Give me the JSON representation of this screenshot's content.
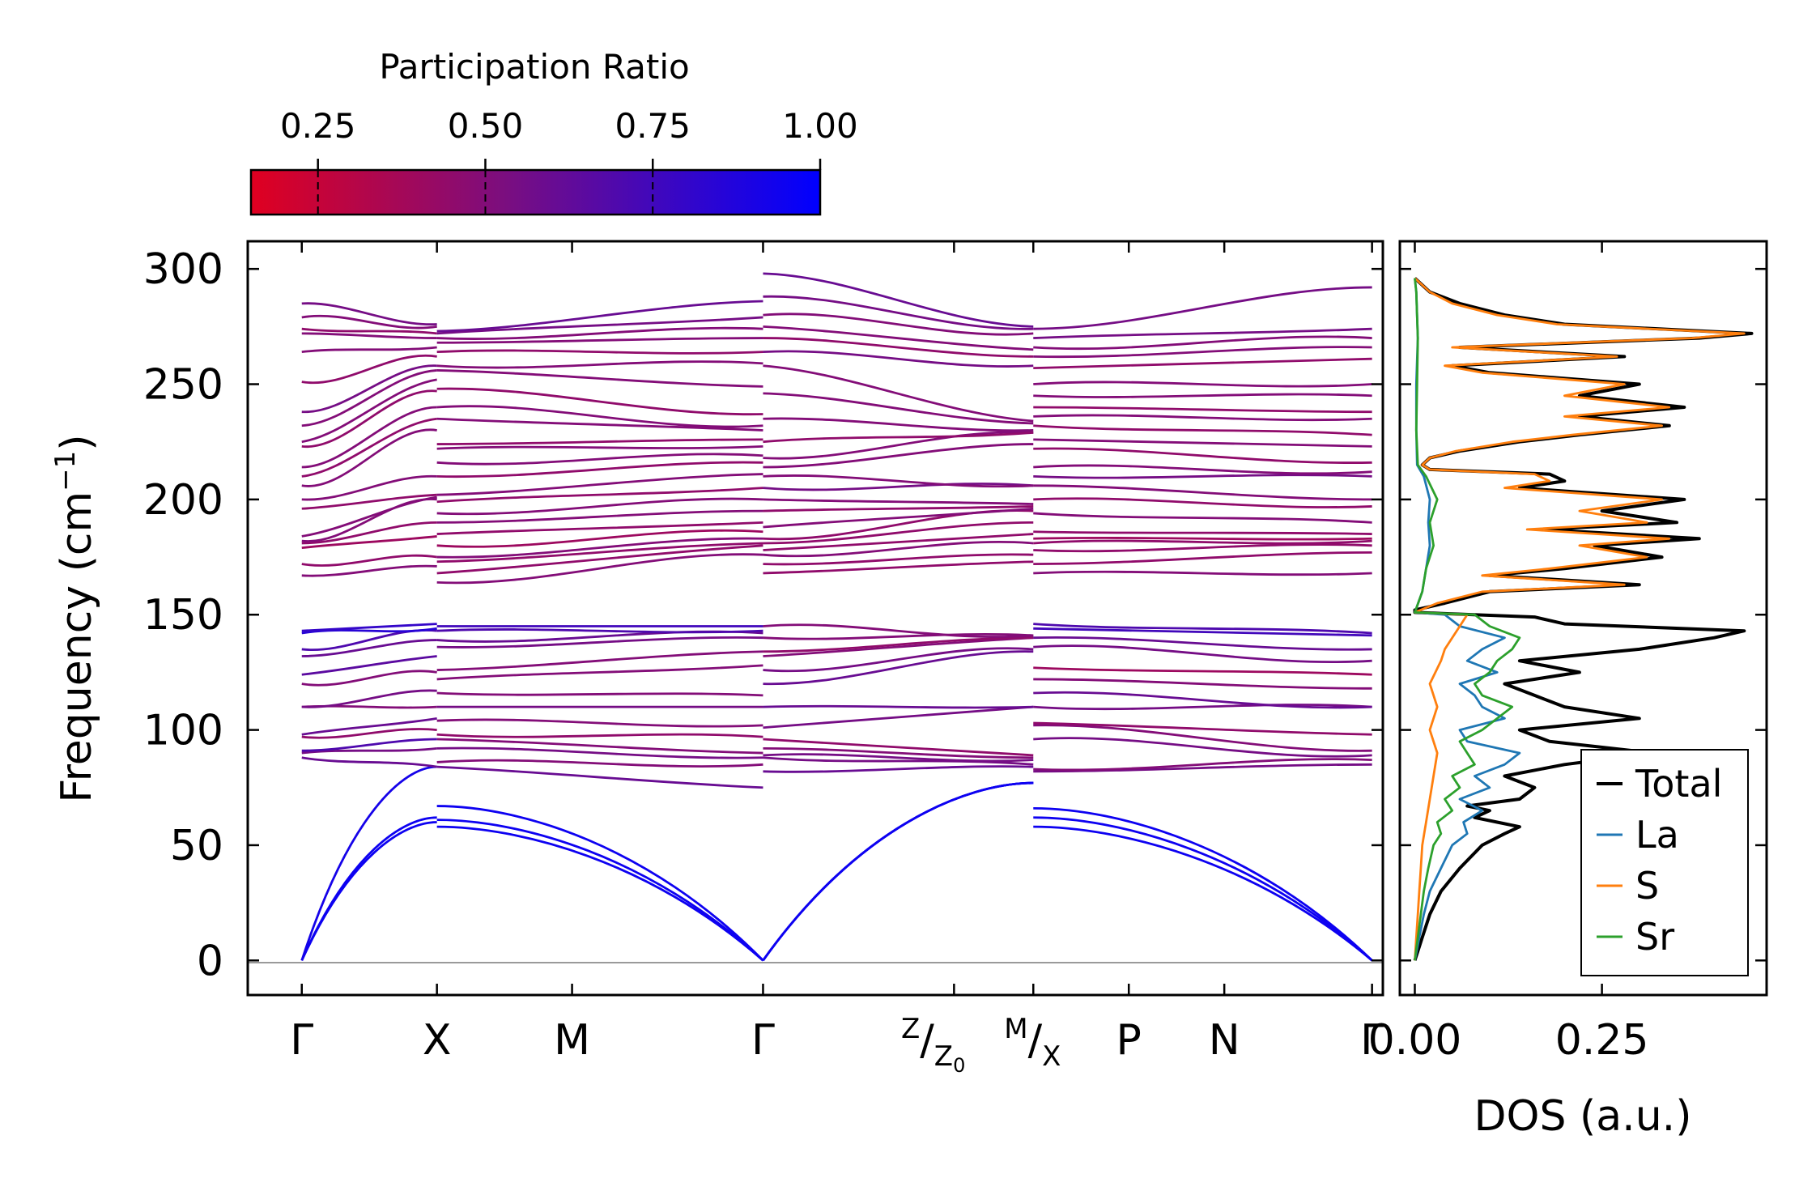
{
  "chart_data": [
    {
      "type": "line",
      "panel": "phonon-band-structure",
      "ylabel_main": "Frequency (cm",
      "ylabel_sup": "−1",
      "ylabel_close": ")",
      "ylim": [
        -15,
        312
      ],
      "yticks": [
        0,
        50,
        100,
        150,
        200,
        250,
        300
      ],
      "xlim": [
        -0.3,
        6.0
      ],
      "path_labels": [
        {
          "pos": 0.0,
          "text": "Γ"
        },
        {
          "pos": 0.75,
          "text": "X"
        },
        {
          "pos": 1.5,
          "text": "M"
        },
        {
          "pos": 2.56,
          "text": "Γ"
        },
        {
          "pos": 3.62,
          "text": "Z|Z0"
        },
        {
          "pos": 4.06,
          "text": "M|X"
        },
        {
          "pos": 4.59,
          "text": "P"
        },
        {
          "pos": 5.12,
          "text": "N"
        },
        {
          "pos": 5.94,
          "text": "Γ"
        }
      ],
      "special_labels": {
        "zz0": {
          "sup": "Z",
          "slash": "/",
          "sub": "Z",
          "subsub": "0"
        },
        "mx": {
          "sup": "M",
          "slash": "/",
          "sub": "X"
        }
      },
      "segments": [
        {
          "x": [
            0.0,
            0.75
          ],
          "starts": [
            0,
            0,
            0,
            88,
            90,
            91,
            97,
            98,
            110,
            110,
            120,
            124,
            132,
            135,
            142,
            143,
            167,
            172,
            179,
            181,
            182,
            184,
            196,
            200,
            206,
            210,
            214,
            223,
            225,
            232,
            238,
            251,
            264,
            272,
            274,
            279,
            285
          ],
          "ends": [
            60,
            62,
            84,
            84,
            92,
            96,
            100,
            105,
            110,
            117,
            125,
            132,
            139,
            143,
            144,
            146,
            171,
            175,
            184,
            190,
            200,
            201,
            202,
            210,
            230,
            235,
            240,
            247,
            252,
            256,
            258,
            262,
            266,
            270,
            272,
            275,
            276
          ],
          "pr": [
            0.95,
            0.95,
            0.92,
            0.6,
            0.55,
            0.7,
            0.45,
            0.6,
            0.5,
            0.55,
            0.5,
            0.65,
            0.6,
            0.7,
            0.85,
            0.8,
            0.5,
            0.45,
            0.4,
            0.45,
            0.5,
            0.5,
            0.45,
            0.5,
            0.5,
            0.45,
            0.5,
            0.45,
            0.5,
            0.5,
            0.55,
            0.45,
            0.5,
            0.5,
            0.45,
            0.5,
            0.55
          ]
        },
        {
          "x": [
            0.75,
            2.56
          ],
          "starts": [
            58,
            61,
            67,
            84,
            86,
            92,
            96,
            98,
            104,
            110,
            116,
            122,
            126,
            136,
            139,
            143,
            145,
            164,
            168,
            173,
            175,
            180,
            185,
            190,
            194,
            199,
            202,
            210,
            216,
            222,
            224,
            235,
            240,
            248,
            256,
            258,
            264,
            268,
            270,
            272,
            273
          ],
          "ends": [
            0,
            0,
            0,
            75,
            85,
            88,
            90,
            97,
            102,
            110,
            115,
            128,
            134,
            140,
            142,
            143,
            145,
            176,
            180,
            181,
            183,
            186,
            190,
            195,
            200,
            205,
            211,
            216,
            219,
            223,
            226,
            230,
            232,
            237,
            249,
            259,
            264,
            270,
            274,
            279,
            286
          ],
          "pr": [
            0.95,
            0.95,
            0.95,
            0.6,
            0.5,
            0.55,
            0.5,
            0.45,
            0.5,
            0.55,
            0.5,
            0.5,
            0.5,
            0.55,
            0.6,
            0.7,
            0.75,
            0.5,
            0.45,
            0.45,
            0.5,
            0.4,
            0.45,
            0.5,
            0.5,
            0.45,
            0.5,
            0.45,
            0.5,
            0.5,
            0.45,
            0.5,
            0.5,
            0.45,
            0.5,
            0.5,
            0.45,
            0.5,
            0.5,
            0.55,
            0.6
          ]
        },
        {
          "x": [
            2.56,
            4.06
          ],
          "starts": [
            0,
            0,
            0,
            82,
            88,
            89,
            92,
            96,
            101,
            110,
            120,
            126,
            132,
            134,
            140,
            145,
            168,
            172,
            176,
            178,
            181,
            183,
            188,
            195,
            200,
            205,
            210,
            214,
            218,
            225,
            235,
            246,
            258,
            264,
            270,
            275,
            280,
            288,
            298
          ],
          "ends": [
            77,
            77,
            77,
            84,
            85,
            87,
            88,
            89,
            110,
            110,
            134,
            135,
            140,
            140,
            141,
            141,
            173,
            176,
            181,
            185,
            190,
            195,
            196,
            197,
            198,
            206,
            206,
            224,
            229,
            229,
            230,
            233,
            234,
            258,
            262,
            265,
            272,
            274,
            275
          ],
          "pr": [
            0.95,
            0.95,
            0.95,
            0.6,
            0.55,
            0.55,
            0.5,
            0.45,
            0.55,
            0.6,
            0.6,
            0.55,
            0.5,
            0.45,
            0.5,
            0.5,
            0.45,
            0.45,
            0.5,
            0.45,
            0.45,
            0.45,
            0.5,
            0.45,
            0.5,
            0.55,
            0.5,
            0.5,
            0.5,
            0.45,
            0.5,
            0.5,
            0.5,
            0.55,
            0.45,
            0.5,
            0.5,
            0.55,
            0.6
          ]
        },
        {
          "x": [
            4.06,
            5.94
          ],
          "starts": [
            58,
            62,
            66,
            82,
            83,
            96,
            102,
            103,
            110,
            116,
            122,
            127,
            136,
            140,
            144,
            146,
            168,
            172,
            178,
            181,
            183,
            186,
            194,
            200,
            206,
            210,
            214,
            222,
            226,
            232,
            236,
            240,
            245,
            250,
            257,
            262,
            266,
            270,
            274
          ],
          "ends": [
            0,
            0,
            0,
            85,
            87,
            89,
            91,
            98,
            110,
            110,
            118,
            124,
            130,
            135,
            141,
            142,
            168,
            177,
            180,
            182,
            183,
            185,
            190,
            197,
            200,
            210,
            212,
            216,
            223,
            228,
            235,
            238,
            245,
            250,
            261,
            266,
            270,
            274,
            292
          ],
          "pr": [
            0.95,
            0.95,
            0.95,
            0.55,
            0.5,
            0.55,
            0.5,
            0.45,
            0.55,
            0.6,
            0.5,
            0.4,
            0.55,
            0.6,
            0.75,
            0.7,
            0.5,
            0.45,
            0.45,
            0.45,
            0.4,
            0.45,
            0.5,
            0.45,
            0.5,
            0.55,
            0.5,
            0.45,
            0.5,
            0.45,
            0.5,
            0.45,
            0.5,
            0.5,
            0.45,
            0.5,
            0.5,
            0.55,
            0.55
          ]
        }
      ]
    },
    {
      "type": "line",
      "panel": "density-of-states",
      "xlabel": "DOS (a.u.)",
      "xlim": [
        -0.02,
        0.47
      ],
      "xticks": [
        0.0,
        0.25
      ],
      "xtick_labels": [
        "0.00",
        "0.25"
      ],
      "ylim": [
        -15,
        312
      ],
      "legend_position": "bottom-right",
      "series": [
        {
          "name": "Total",
          "color": "#000000",
          "freq": [
            0,
            5,
            10,
            20,
            30,
            40,
            50,
            55,
            58,
            60,
            62,
            65,
            67,
            70,
            75,
            80,
            85,
            90,
            95,
            100,
            105,
            110,
            115,
            120,
            125,
            130,
            135,
            140,
            143,
            146,
            149,
            151,
            152,
            155,
            160,
            163,
            167,
            170,
            175,
            180,
            183,
            187,
            190,
            195,
            200,
            205,
            208,
            211,
            213,
            215,
            218,
            221,
            225,
            228,
            232,
            236,
            240,
            245,
            250,
            255,
            258,
            262,
            266,
            270,
            272,
            276,
            280,
            285,
            290,
            296
          ],
          "values": [
            0.0,
            0.005,
            0.01,
            0.02,
            0.035,
            0.06,
            0.09,
            0.12,
            0.14,
            0.11,
            0.08,
            0.1,
            0.07,
            0.14,
            0.16,
            0.12,
            0.2,
            0.32,
            0.18,
            0.14,
            0.3,
            0.2,
            0.16,
            0.12,
            0.22,
            0.14,
            0.3,
            0.4,
            0.44,
            0.2,
            0.16,
            0.0,
            0.0,
            0.04,
            0.1,
            0.3,
            0.1,
            0.2,
            0.33,
            0.24,
            0.38,
            0.17,
            0.35,
            0.25,
            0.36,
            0.14,
            0.2,
            0.18,
            0.02,
            0.01,
            0.02,
            0.06,
            0.14,
            0.22,
            0.34,
            0.22,
            0.36,
            0.22,
            0.3,
            0.1,
            0.05,
            0.28,
            0.06,
            0.38,
            0.45,
            0.2,
            0.12,
            0.06,
            0.02,
            0.0
          ]
        },
        {
          "name": "La",
          "color": "#1f77b4",
          "freq": [
            0,
            5,
            10,
            20,
            30,
            40,
            50,
            55,
            60,
            65,
            70,
            75,
            80,
            85,
            90,
            95,
            100,
            105,
            110,
            115,
            120,
            125,
            130,
            135,
            140,
            145,
            150,
            151,
            160,
            170,
            180,
            190,
            200,
            210,
            215,
            230,
            250,
            270,
            290,
            296
          ],
          "values": [
            0.0,
            0.003,
            0.006,
            0.012,
            0.02,
            0.035,
            0.05,
            0.07,
            0.065,
            0.09,
            0.06,
            0.1,
            0.08,
            0.12,
            0.14,
            0.07,
            0.06,
            0.12,
            0.09,
            0.08,
            0.06,
            0.11,
            0.07,
            0.09,
            0.12,
            0.06,
            0.04,
            0.0,
            0.01,
            0.015,
            0.02,
            0.018,
            0.02,
            0.012,
            0.003,
            0.002,
            0.002,
            0.004,
            0.002,
            0.0
          ]
        },
        {
          "name": "S",
          "color": "#ff7f0e",
          "freq": [
            0,
            5,
            10,
            20,
            30,
            40,
            50,
            60,
            70,
            80,
            90,
            95,
            100,
            110,
            120,
            130,
            135,
            140,
            145,
            150,
            151,
            155,
            160,
            163,
            167,
            170,
            175,
            180,
            183,
            187,
            190,
            195,
            200,
            205,
            208,
            211,
            213,
            215,
            218,
            221,
            225,
            228,
            232,
            236,
            240,
            245,
            250,
            255,
            258,
            262,
            266,
            270,
            272,
            276,
            280,
            285,
            290,
            296
          ],
          "values": [
            0.0,
            0.001,
            0.002,
            0.004,
            0.006,
            0.008,
            0.01,
            0.015,
            0.02,
            0.025,
            0.03,
            0.025,
            0.02,
            0.03,
            0.02,
            0.035,
            0.04,
            0.05,
            0.06,
            0.07,
            0.0,
            0.03,
            0.09,
            0.28,
            0.09,
            0.18,
            0.31,
            0.22,
            0.34,
            0.15,
            0.31,
            0.22,
            0.33,
            0.12,
            0.18,
            0.16,
            0.02,
            0.01,
            0.02,
            0.055,
            0.13,
            0.21,
            0.33,
            0.2,
            0.34,
            0.2,
            0.28,
            0.09,
            0.04,
            0.27,
            0.05,
            0.37,
            0.44,
            0.19,
            0.11,
            0.05,
            0.02,
            0.0
          ]
        },
        {
          "name": "Sr",
          "color": "#2ca02c",
          "freq": [
            0,
            5,
            10,
            20,
            30,
            40,
            50,
            55,
            60,
            65,
            70,
            75,
            80,
            85,
            90,
            95,
            100,
            105,
            110,
            115,
            120,
            125,
            130,
            135,
            140,
            145,
            150,
            151,
            160,
            170,
            180,
            190,
            200,
            210,
            215,
            230,
            250,
            270,
            290,
            296
          ],
          "values": [
            0.0,
            0.002,
            0.004,
            0.008,
            0.012,
            0.018,
            0.025,
            0.035,
            0.03,
            0.05,
            0.04,
            0.06,
            0.05,
            0.08,
            0.07,
            0.06,
            0.09,
            0.11,
            0.13,
            0.09,
            0.08,
            0.1,
            0.11,
            0.13,
            0.14,
            0.1,
            0.08,
            0.0,
            0.01,
            0.015,
            0.025,
            0.02,
            0.03,
            0.015,
            0.004,
            0.002,
            0.003,
            0.004,
            0.002,
            0.0
          ]
        }
      ]
    },
    {
      "type": "heatmap",
      "panel": "colorbar",
      "title": "Participation Ratio",
      "range": [
        0.15,
        1.0
      ],
      "ticks": [
        0.25,
        0.5,
        0.75,
        1.0
      ],
      "tick_labels": [
        "0.25",
        "0.50",
        "0.75",
        "1.00"
      ],
      "colors": {
        "low": "#e00020",
        "mid": "#7a0e80",
        "high": "#0000ff"
      }
    }
  ]
}
